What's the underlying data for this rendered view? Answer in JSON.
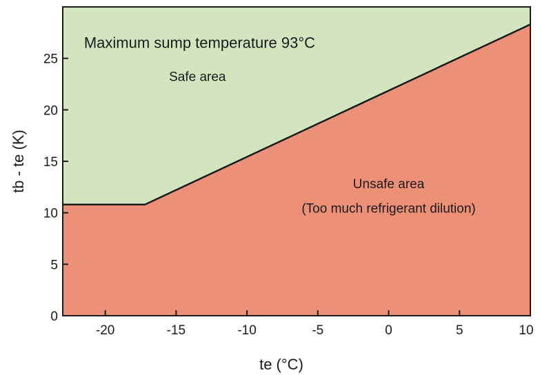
{
  "chart_data": {
    "type": "area",
    "xlabel": "te (°C)",
    "ylabel": "tb - te (K)",
    "xlim": [
      -23,
      10
    ],
    "ylim": [
      0,
      30
    ],
    "x_ticks": [
      -20,
      -15,
      -10,
      -5,
      0,
      5,
      10
    ],
    "y_ticks": [
      0,
      5,
      10,
      15,
      20,
      25
    ],
    "boundary": {
      "x": [
        -23,
        -17.2,
        10
      ],
      "y": [
        10.8,
        10.8,
        28.3
      ]
    },
    "regions": [
      {
        "label": "Safe area",
        "color": "#d2e5bf"
      },
      {
        "label": "Unsafe area",
        "color": "#ed9078"
      }
    ],
    "annotations": [
      {
        "text": "Maximum sump temperature 93°C",
        "x": -21.5,
        "y": 26.0
      },
      {
        "text": "Safe area",
        "x": -15.5,
        "y": 22.8
      },
      {
        "text": "Unsafe area",
        "x": 0.0,
        "y": 12.4
      },
      {
        "text": "(Too much refrigerant dilution)",
        "x": 0.0,
        "y": 10.0
      }
    ],
    "grid": false
  }
}
